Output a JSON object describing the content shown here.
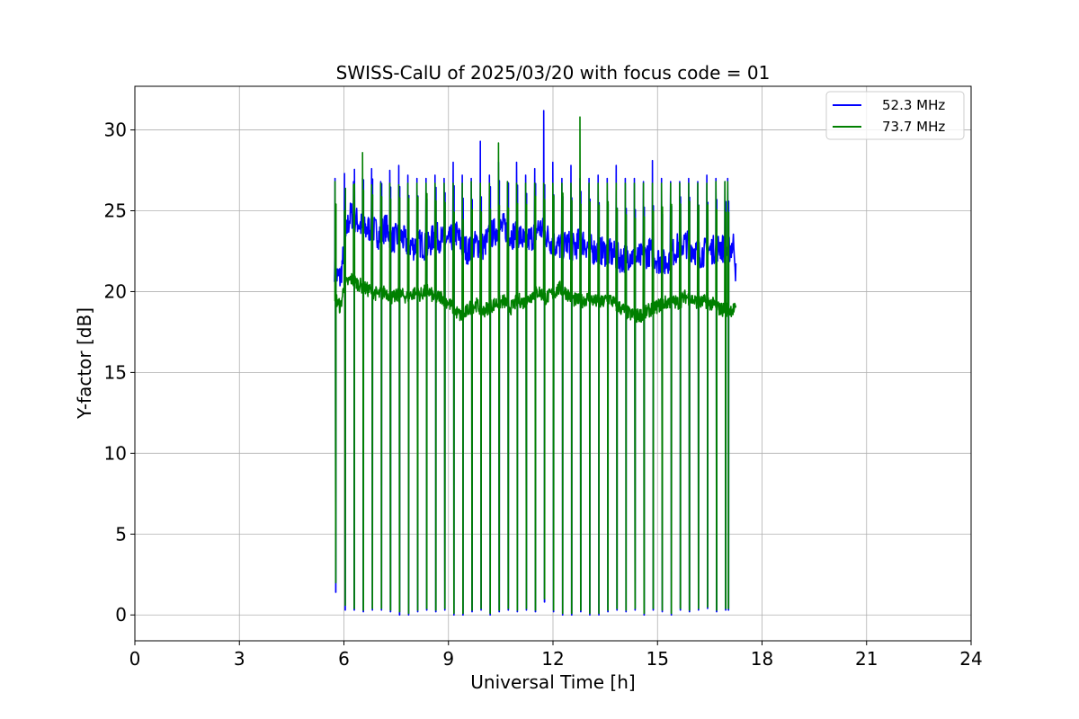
{
  "chart_data": {
    "type": "line",
    "title": "SWISS-CalU of 2025/03/20 with focus code = 01",
    "xlabel": "Universal Time [h]",
    "ylabel": "Y-factor [dB]",
    "xlim": [
      0,
      24
    ],
    "ylim": [
      -1.6,
      32.7
    ],
    "xticks": [
      0,
      3,
      6,
      9,
      12,
      15,
      18,
      21,
      24
    ],
    "yticks": [
      0,
      5,
      10,
      15,
      20,
      25,
      30
    ],
    "grid": true,
    "legend_position": "top-right",
    "x_range_observed": [
      5.73,
      17.25
    ],
    "series": [
      {
        "name": "52.3 MHz",
        "color": "#0000ff",
        "x": [
          5.73,
          5.78,
          5.9,
          6.0,
          6.1,
          6.2,
          6.4,
          6.6,
          6.8,
          7.0,
          7.2,
          7.4,
          7.6,
          7.8,
          8.0,
          8.2,
          8.4,
          8.6,
          8.8,
          9.0,
          9.2,
          9.4,
          9.6,
          9.8,
          10.0,
          10.2,
          10.4,
          10.6,
          10.8,
          11.0,
          11.2,
          11.4,
          11.6,
          11.8,
          12.0,
          12.2,
          12.4,
          12.6,
          12.8,
          13.0,
          13.2,
          13.4,
          13.6,
          13.8,
          14.0,
          14.2,
          14.4,
          14.6,
          14.8,
          15.0,
          15.2,
          15.4,
          15.6,
          15.8,
          16.0,
          16.2,
          16.4,
          16.6,
          16.8,
          17.0,
          17.2,
          17.25
        ],
        "y": [
          21.5,
          21.0,
          20.8,
          22.5,
          24.0,
          24.8,
          24.3,
          23.8,
          24.0,
          23.5,
          24.0,
          23.2,
          23.5,
          23.0,
          22.8,
          23.0,
          22.7,
          23.5,
          23.2,
          23.0,
          23.7,
          22.8,
          22.5,
          23.0,
          22.8,
          23.5,
          23.8,
          24.0,
          23.5,
          23.6,
          23.0,
          23.4,
          24.0,
          23.5,
          23.0,
          22.8,
          23.0,
          22.7,
          23.2,
          22.8,
          22.5,
          22.5,
          22.4,
          22.2,
          22.0,
          22.3,
          22.0,
          22.2,
          22.5,
          22.0,
          21.7,
          22.3,
          22.8,
          23.0,
          22.7,
          22.3,
          22.5,
          22.6,
          22.8,
          22.5,
          23.0,
          21.0
        ],
        "peaks": [
          27.0,
          27.3,
          26.8,
          27.0,
          27.6,
          26.8,
          27.5,
          27.8,
          27.2,
          27.0,
          27.0,
          27.2,
          27.0,
          28.0,
          27.2,
          27.0,
          29.3,
          27.2,
          28.0,
          26.8,
          28.0,
          27.2,
          27.6,
          31.2,
          28.0,
          27.0,
          27.8,
          27.0,
          27.0,
          27.2,
          27.0,
          27.8,
          27.0,
          27.0,
          26.8,
          28.1,
          27.0,
          26.8,
          26.8,
          27.0,
          26.8,
          27.2,
          27.0,
          26.8
        ]
      },
      {
        "name": "73.7 MHz",
        "color": "#008000",
        "x": [
          5.73,
          5.78,
          5.9,
          6.0,
          6.2,
          6.4,
          6.6,
          6.8,
          7.0,
          7.2,
          7.4,
          7.6,
          7.8,
          8.0,
          8.2,
          8.4,
          8.6,
          8.8,
          9.0,
          9.2,
          9.4,
          9.6,
          9.8,
          10.0,
          10.2,
          10.4,
          10.6,
          10.8,
          11.0,
          11.2,
          11.4,
          11.6,
          11.8,
          12.0,
          12.2,
          12.4,
          12.6,
          12.8,
          13.0,
          13.2,
          13.4,
          13.6,
          13.8,
          14.0,
          14.2,
          14.4,
          14.6,
          14.8,
          15.0,
          15.2,
          15.4,
          15.6,
          15.8,
          16.0,
          16.2,
          16.4,
          16.6,
          16.8,
          17.0,
          17.2,
          17.25
        ],
        "y": [
          19.2,
          19.5,
          19.0,
          20.3,
          20.8,
          20.5,
          20.2,
          20.0,
          19.8,
          20.0,
          19.6,
          19.8,
          19.7,
          19.9,
          19.8,
          20.1,
          19.6,
          19.7,
          19.3,
          18.8,
          18.4,
          19.0,
          19.2,
          18.8,
          19.1,
          19.3,
          19.4,
          19.0,
          19.5,
          19.3,
          19.8,
          20.0,
          19.6,
          19.9,
          20.2,
          19.9,
          19.5,
          19.4,
          19.6,
          19.4,
          19.3,
          19.6,
          19.2,
          18.9,
          18.6,
          18.5,
          18.6,
          18.9,
          19.1,
          19.3,
          19.4,
          19.3,
          19.7,
          19.5,
          19.3,
          19.4,
          19.2,
          18.9,
          18.9,
          18.9,
          18.8
        ],
        "peaks": [
          26.8,
          25.0,
          26.6,
          28.6,
          26.6,
          26.7,
          26.7,
          26.6,
          26.7,
          26.7,
          26.7,
          26.7,
          26.7,
          26.7,
          26.7,
          26.8,
          26.7,
          26.7,
          29.2,
          26.8,
          26.7,
          26.7,
          26.7,
          26.7,
          26.7,
          26.7,
          26.7,
          30.8,
          26.7,
          26.7,
          26.7,
          26.7,
          26.7,
          26.7,
          26.7,
          26.7,
          26.7,
          26.7,
          26.7,
          26.7,
          26.7,
          26.7,
          26.8,
          26.8,
          26.8,
          26.8
        ]
      }
    ],
    "calibration_dips": {
      "x": [
        5.73,
        6.0,
        6.26,
        6.52,
        6.78,
        7.04,
        7.3,
        7.56,
        7.82,
        8.08,
        8.34,
        8.6,
        8.86,
        9.12,
        9.38,
        9.64,
        9.9,
        10.16,
        10.42,
        10.68,
        10.94,
        11.2,
        11.46,
        11.72,
        11.98,
        12.24,
        12.5,
        12.76,
        13.02,
        13.28,
        13.54,
        13.8,
        14.06,
        14.32,
        14.58,
        14.84,
        15.1,
        15.36,
        15.62,
        15.88,
        16.14,
        16.4,
        16.66,
        16.92,
        17.0
      ],
      "y_blue": [
        1.4,
        0.3,
        0.3,
        0.2,
        0.3,
        0.3,
        0.2,
        0.0,
        0.0,
        0.2,
        0.3,
        0.2,
        0.3,
        0.0,
        0.0,
        0.2,
        0.3,
        0.0,
        0.2,
        0.3,
        0.2,
        0.3,
        0.2,
        0.8,
        0.2,
        0.0,
        0.0,
        0.2,
        0.0,
        0.0,
        0.2,
        0.3,
        0.2,
        0.3,
        0.0,
        0.3,
        0.2,
        0.0,
        0.3,
        0.2,
        0.3,
        0.4,
        0.2,
        0.3,
        0.3
      ],
      "y_green": [
        2.0,
        0.6,
        0.4,
        0.3,
        0.4,
        0.4,
        0.3,
        0.2,
        0.1,
        0.3,
        0.4,
        0.3,
        0.4,
        0.1,
        0.1,
        0.3,
        0.4,
        0.1,
        0.3,
        0.4,
        0.3,
        0.4,
        0.3,
        1.0,
        0.3,
        0.1,
        0.1,
        0.3,
        0.1,
        0.1,
        0.3,
        0.4,
        0.3,
        0.4,
        0.1,
        0.4,
        0.3,
        0.1,
        0.4,
        0.3,
        0.4,
        0.5,
        0.3,
        0.4,
        0.4
      ]
    }
  }
}
